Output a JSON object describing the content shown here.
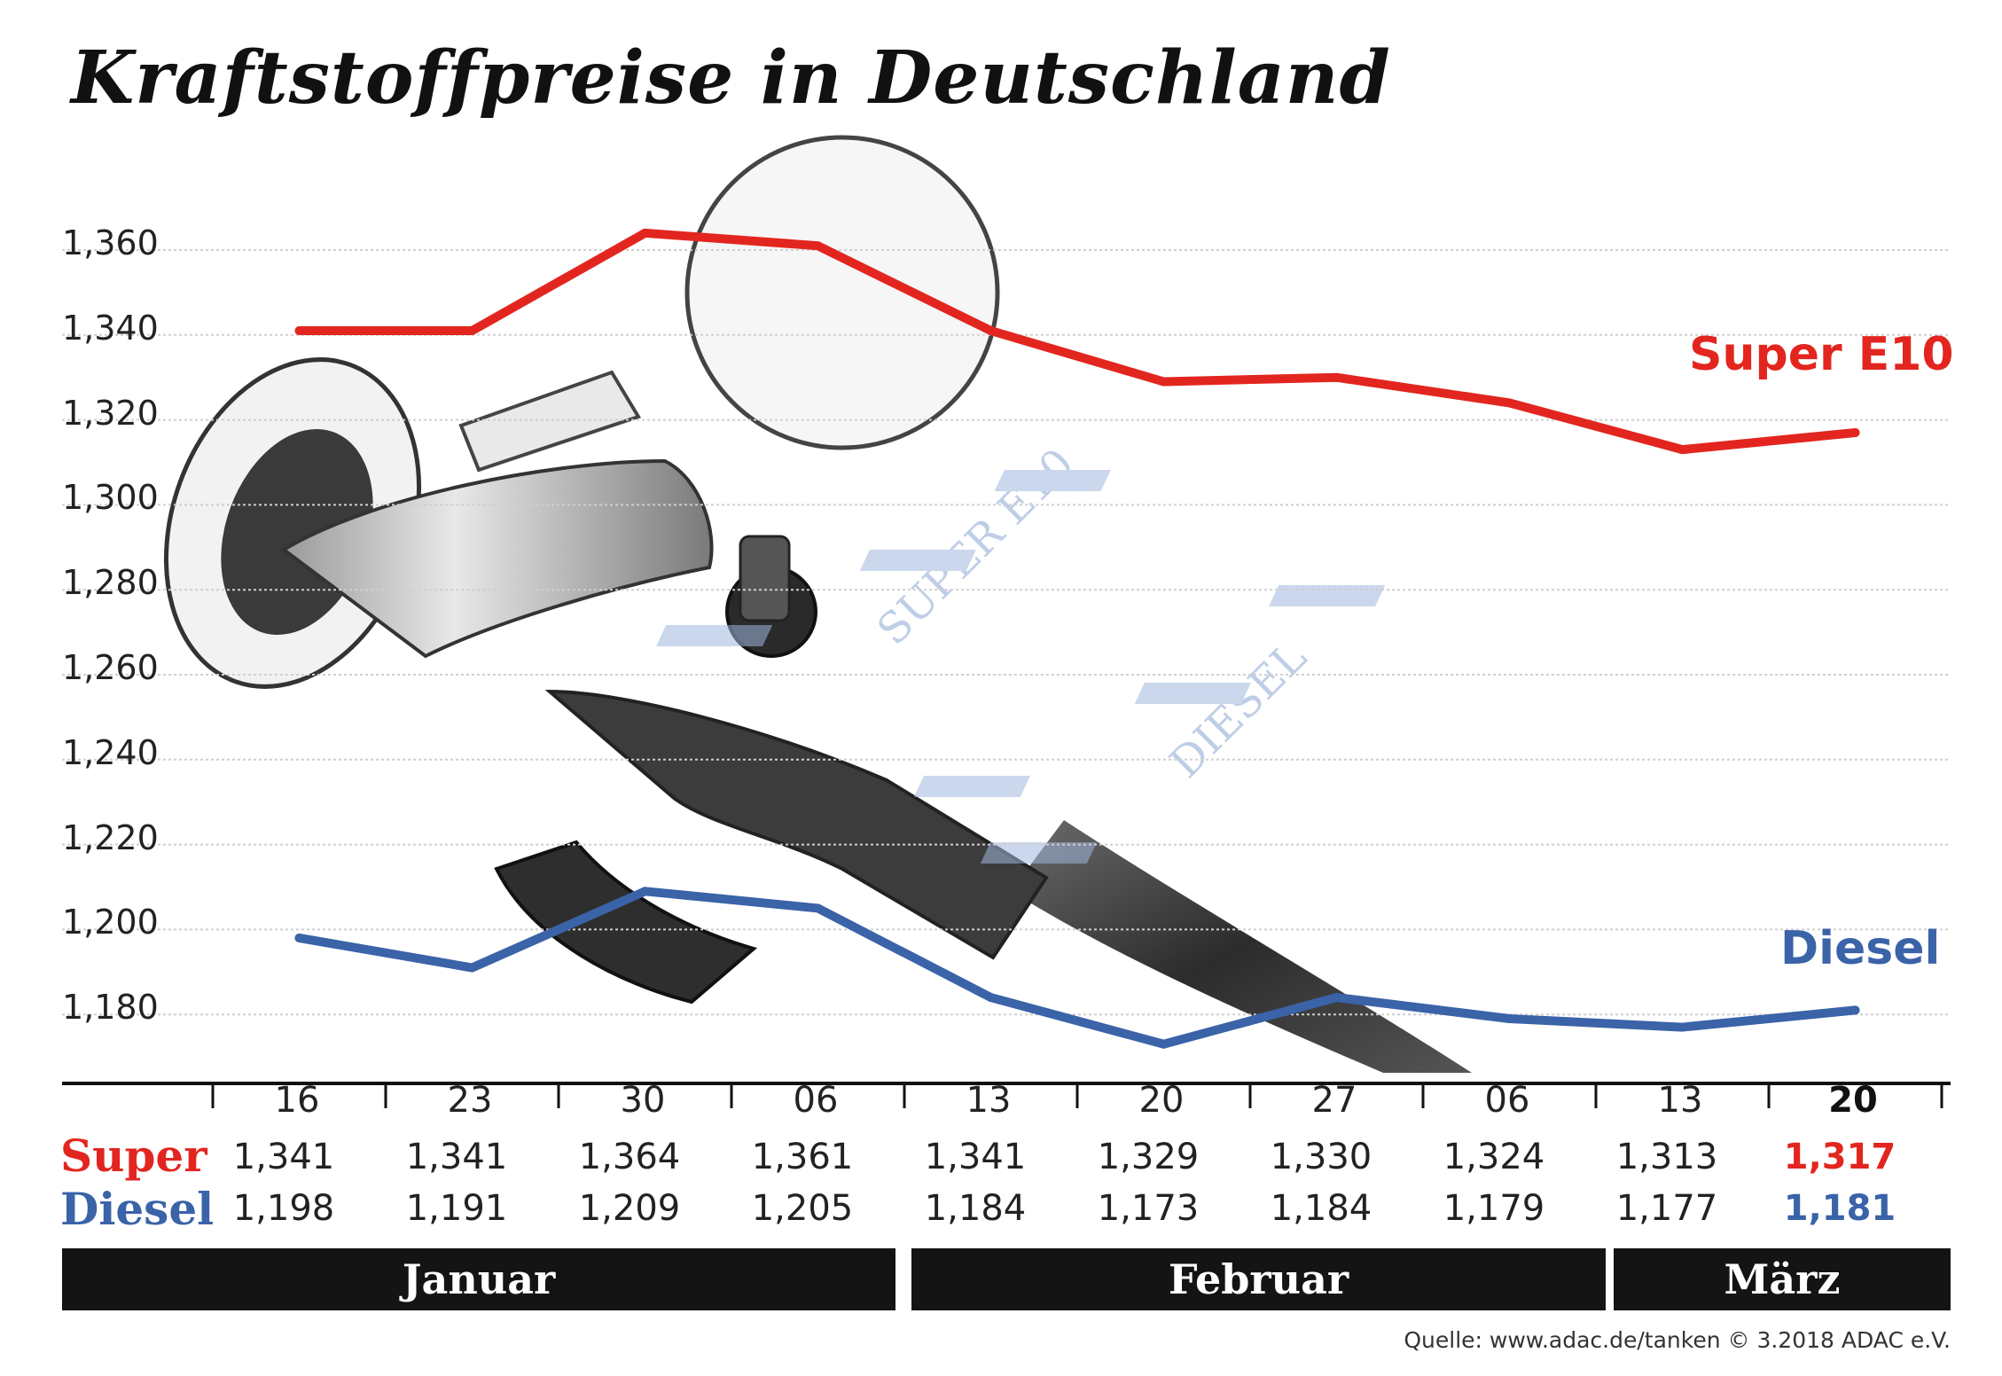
{
  "title": "Kraftstoffpreise in Deutschland",
  "colors": {
    "super": "#e2261f",
    "diesel": "#3a63a8",
    "grid": "#cfcfcf",
    "month_bar": "#141414"
  },
  "chart_data": {
    "type": "line",
    "title": "Kraftstoffpreise in Deutschland",
    "ylim": [
      1.17,
      1.37
    ],
    "yticks": [
      "1,360",
      "1,340",
      "1,320",
      "1,300",
      "1,280",
      "1,260",
      "1,240",
      "1,220",
      "1,200",
      "1,180"
    ],
    "ytick_values": [
      1.36,
      1.34,
      1.32,
      1.3,
      1.28,
      1.26,
      1.24,
      1.22,
      1.2,
      1.18
    ],
    "grid": true,
    "categories": [
      "16",
      "23",
      "30",
      "06",
      "13",
      "20",
      "27",
      "06",
      "13",
      "20"
    ],
    "months": [
      "Januar",
      "Februar",
      "März"
    ],
    "series": [
      {
        "name": "Super E10",
        "values": [
          1.341,
          1.341,
          1.364,
          1.361,
          1.341,
          1.329,
          1.33,
          1.324,
          1.313,
          1.317
        ]
      },
      {
        "name": "Diesel",
        "values": [
          1.198,
          1.191,
          1.209,
          1.205,
          1.184,
          1.173,
          1.184,
          1.179,
          1.177,
          1.181
        ]
      }
    ]
  },
  "table": {
    "dates": [
      "16",
      "23",
      "30",
      "06",
      "13",
      "20",
      "27",
      "06",
      "13",
      "20"
    ],
    "super_label": "Super",
    "diesel_label": "Diesel",
    "super_values": [
      "1,341",
      "1,341",
      "1,364",
      "1,361",
      "1,341",
      "1,329",
      "1,330",
      "1,324",
      "1,313",
      "1,317"
    ],
    "diesel_values": [
      "1,198",
      "1,191",
      "1,209",
      "1,205",
      "1,184",
      "1,173",
      "1,184",
      "1,179",
      "1,177",
      "1,181"
    ]
  },
  "months": {
    "january": "Januar",
    "february": "Februar",
    "march": "März"
  },
  "background_illustration": {
    "subject": "fuel-nozzle-icon",
    "display_labels": [
      "SUPER E10",
      "DIESEL"
    ]
  },
  "source": "Quelle: www.adac.de/tanken   © 3.2018  ADAC e.V."
}
